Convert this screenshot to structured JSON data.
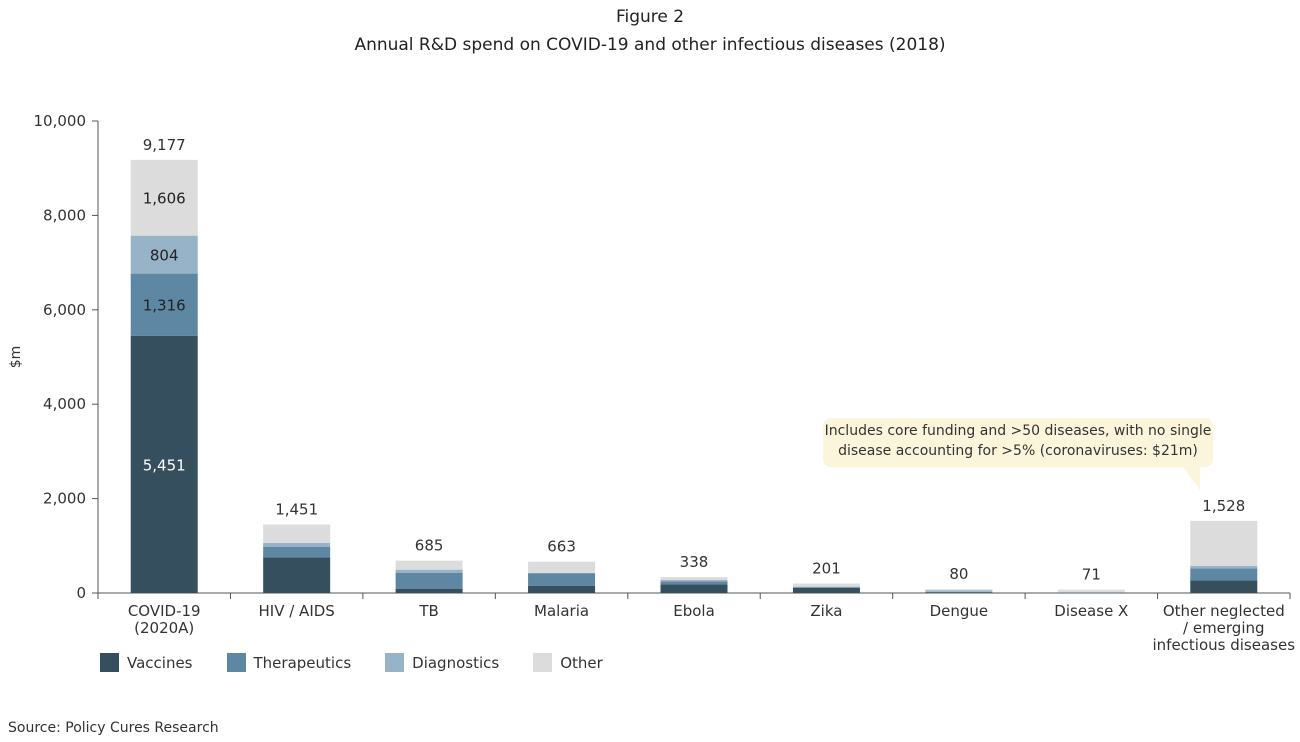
{
  "figure_label": "Figure 2",
  "source": "Source: Policy Cures Research",
  "annotation": "Includes core funding and >50 diseases, with no single disease accounting for >5% (coronaviruses: $21m)",
  "colors": {
    "Vaccines": "#354f5f",
    "Therapeutics": "#5e87a3",
    "Diagnostics": "#97b3c8",
    "Other": "#dcdcdc",
    "annotation_bg": "#fbf5dc"
  },
  "chart_data": {
    "type": "bar",
    "stacked": true,
    "title": "Annual R&D spend on COVID-19 and other infectious diseases (2018)",
    "xlabel": "",
    "ylabel": "$m",
    "ylim": [
      0,
      10000
    ],
    "yticks": [
      "0",
      "2,000",
      "4,000",
      "6,000",
      "8,000",
      "10,000"
    ],
    "grid": false,
    "legend": "bottom-left",
    "categories": [
      "COVID-19\n(2020A)",
      "HIV / AIDS",
      "TB",
      "Malaria",
      "Ebola",
      "Zika",
      "Dengue",
      "Disease X",
      "Other neglected\n/ emerging\ninfectious diseases"
    ],
    "totals": [
      9177,
      1451,
      685,
      663,
      338,
      201,
      80,
      71,
      1528
    ],
    "total_labels": [
      "9,177",
      "1,451",
      "685",
      "663",
      "338",
      "201",
      "80",
      "71",
      "1,528"
    ],
    "series": [
      {
        "name": "Vaccines",
        "values": [
          5451,
          757,
          85,
          155,
          182,
          110,
          10,
          5,
          269
        ],
        "labels": [
          "5,451",
          "",
          "",
          "",
          "",
          "",
          "",
          "",
          ""
        ]
      },
      {
        "name": "Therapeutics",
        "values": [
          1316,
          225,
          345,
          265,
          64,
          15,
          15,
          5,
          254
        ],
        "labels": [
          "1,316",
          "",
          "",
          "",
          "",
          "",
          "",
          "",
          ""
        ]
      },
      {
        "name": "Diagnostics",
        "values": [
          804,
          78,
          64,
          5,
          30,
          10,
          35,
          6,
          49
        ],
        "labels": [
          "804",
          "",
          "",
          "",
          "",
          "",
          "",
          "",
          ""
        ]
      },
      {
        "name": "Other",
        "values": [
          1606,
          391,
          191,
          238,
          62,
          66,
          20,
          55,
          956
        ],
        "labels": [
          "1,606",
          "",
          "",
          "",
          "",
          "",
          "",
          "",
          ""
        ]
      }
    ]
  }
}
